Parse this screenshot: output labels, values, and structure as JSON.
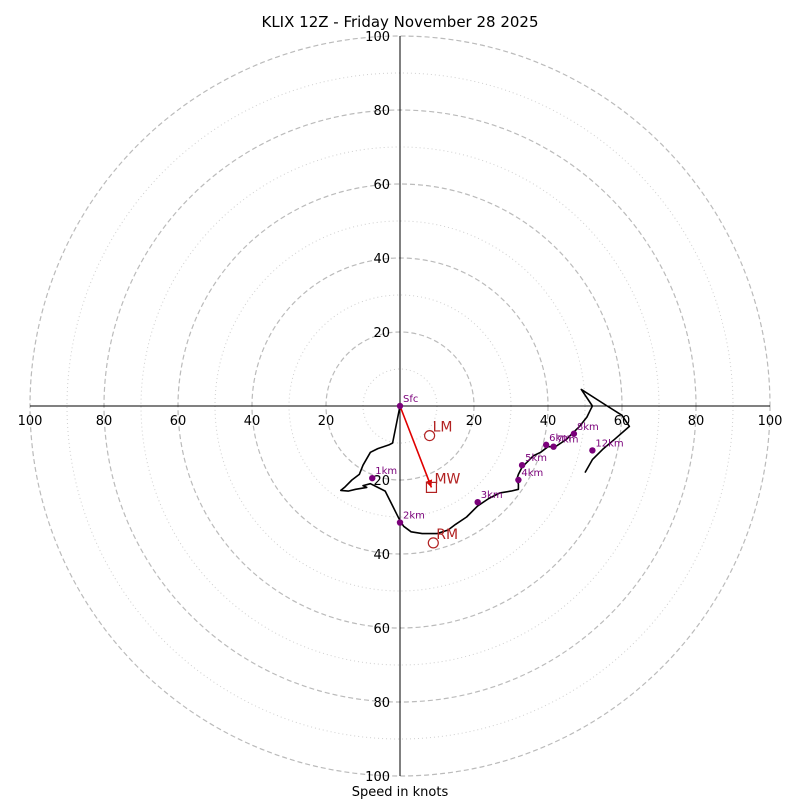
{
  "chart_data": {
    "type": "hodograph",
    "title": "KLIX 12Z - Friday November 28 2025",
    "xlabel": "Speed in knots",
    "range": 100,
    "major_rings": [
      20,
      40,
      60,
      80,
      100
    ],
    "minor_rings": [
      10,
      30,
      50,
      70,
      90
    ],
    "axis_ticks": [
      20,
      40,
      60,
      80,
      100
    ],
    "colors": {
      "trace": "#000000",
      "height_marker": "#7a007a",
      "motion": "#b22222",
      "mean_wind_arrow": "#e00000",
      "ring_major": "#bbbbbb",
      "ring_minor": "#cfcfcf"
    },
    "trace": [
      [
        0,
        0
      ],
      [
        -2,
        -10
      ],
      [
        -3,
        -10.5
      ],
      [
        -6,
        -11.5
      ],
      [
        -8,
        -12.5
      ],
      [
        -10,
        -16
      ],
      [
        -11,
        -18.5
      ],
      [
        -13,
        -20
      ],
      [
        -15,
        -22
      ],
      [
        -16,
        -22.8
      ],
      [
        -14,
        -23
      ],
      [
        -12,
        -22.5
      ],
      [
        -9,
        -22
      ],
      [
        -10,
        -21.5
      ],
      [
        -8,
        -21
      ],
      [
        -6,
        -22
      ],
      [
        -4,
        -23
      ],
      [
        -3,
        -25
      ],
      [
        -2,
        -27
      ],
      [
        -1,
        -29
      ],
      [
        0,
        -31
      ],
      [
        1,
        -32.5
      ],
      [
        3,
        -34
      ],
      [
        6,
        -34.5
      ],
      [
        10,
        -34.5
      ],
      [
        13,
        -33.5
      ],
      [
        15,
        -32
      ],
      [
        18,
        -30
      ],
      [
        21,
        -27
      ],
      [
        24,
        -25
      ],
      [
        27,
        -23.5
      ],
      [
        30,
        -23
      ],
      [
        32,
        -22.5
      ],
      [
        32,
        -21
      ],
      [
        31.5,
        -20
      ],
      [
        32,
        -18.5
      ],
      [
        33,
        -16.5
      ],
      [
        34,
        -15.5
      ],
      [
        36,
        -13.5
      ],
      [
        38,
        -12.5
      ],
      [
        40,
        -11
      ],
      [
        42,
        -11
      ],
      [
        43.5,
        -10
      ],
      [
        45,
        -9
      ],
      [
        46,
        -8
      ],
      [
        47,
        -7
      ],
      [
        48.5,
        -5.5
      ],
      [
        50.5,
        -3
      ],
      [
        51.5,
        -1
      ],
      [
        52,
        0
      ],
      [
        49,
        4.5
      ],
      [
        56,
        0
      ],
      [
        60,
        -2.5
      ],
      [
        62,
        -5.5
      ],
      [
        58,
        -9
      ],
      [
        55,
        -11.5
      ],
      [
        52,
        -14.5
      ],
      [
        50,
        -18
      ]
    ],
    "height_markers": [
      {
        "label": "Sfc",
        "u": 0,
        "v": 0
      },
      {
        "label": "1km",
        "u": -7.5,
        "v": -19.5
      },
      {
        "label": "2km",
        "u": 0,
        "v": -31.5
      },
      {
        "label": "3km",
        "u": 21,
        "v": -26
      },
      {
        "label": "4km",
        "u": 32,
        "v": -20
      },
      {
        "label": "5km",
        "u": 33,
        "v": -16
      },
      {
        "label": "6km",
        "u": 39.5,
        "v": -10.5
      },
      {
        "label": "7km",
        "u": 41.5,
        "v": -11
      },
      {
        "label": "8km",
        "u": 47,
        "v": -7.5
      },
      {
        "label": "12km",
        "u": 52,
        "v": -12
      }
    ],
    "storm_motions": [
      {
        "label": "LM",
        "u": 8,
        "v": -8,
        "marker": "circle"
      },
      {
        "label": "MW",
        "u": 8.5,
        "v": -22,
        "marker": "square"
      },
      {
        "label": "RM",
        "u": 9,
        "v": -37,
        "marker": "circle"
      }
    ],
    "mean_wind_arrow": {
      "from": [
        0,
        0
      ],
      "to": [
        8.5,
        -22
      ]
    }
  }
}
